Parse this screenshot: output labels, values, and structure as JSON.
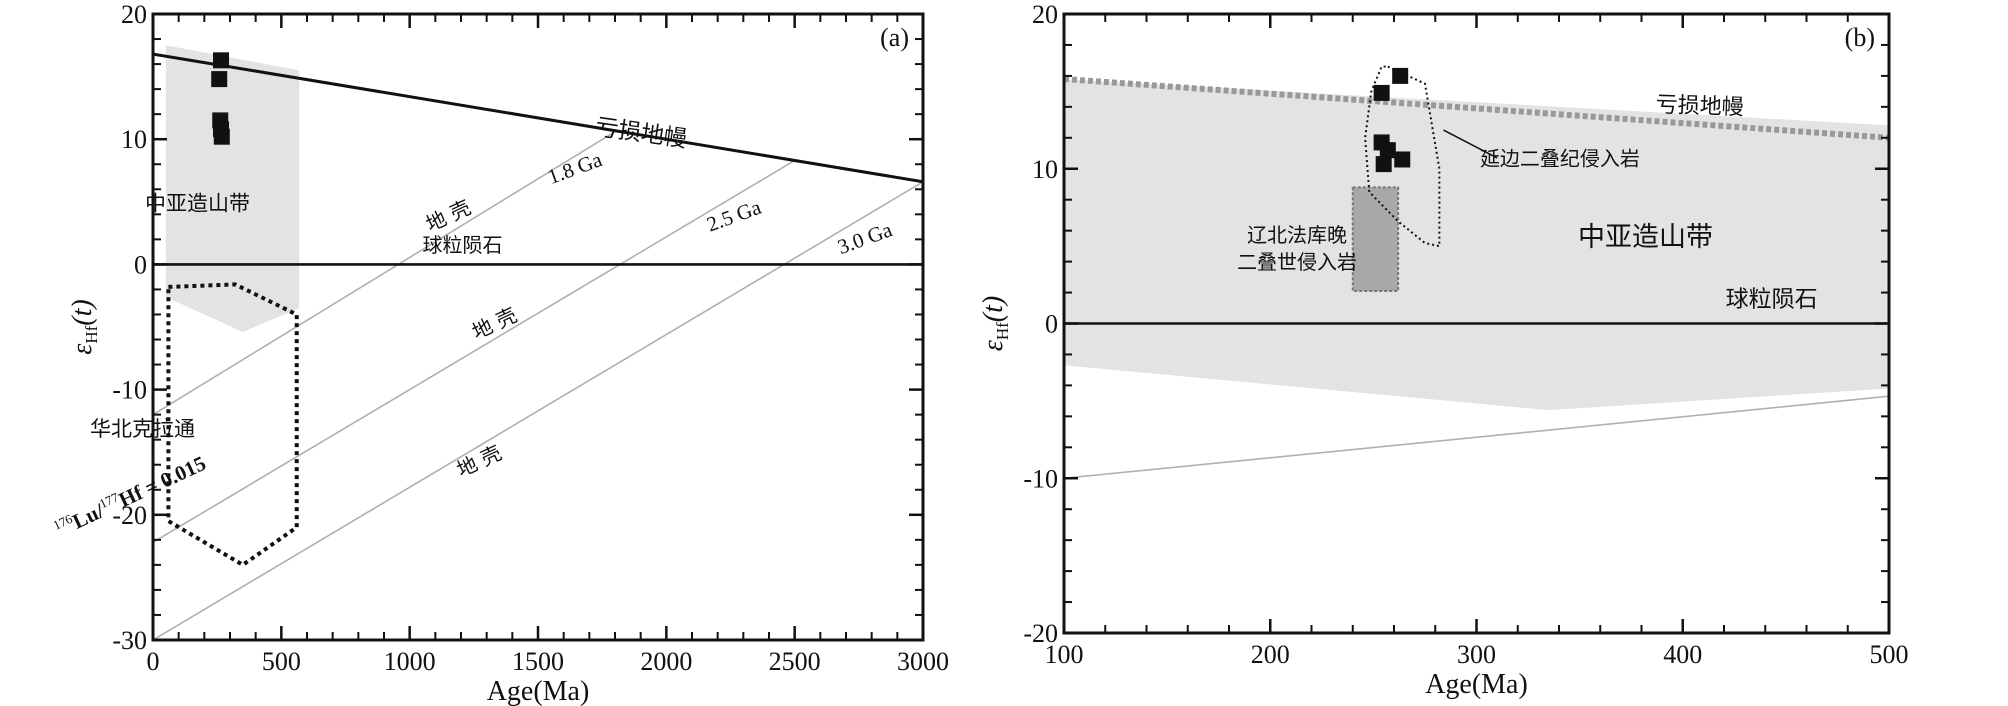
{
  "chart_data": [
    {
      "type": "scatter",
      "panel_label": "(a)",
      "xlabel": "Age(Ma)",
      "ylabel_main": "ε",
      "ylabel_sub": "Hf",
      "ylabel_tail": "(t)",
      "xlim": [
        0,
        3000
      ],
      "ylim": [
        -30,
        20
      ],
      "x_ticks": [
        0,
        500,
        1000,
        1500,
        2000,
        2500,
        3000
      ],
      "y_ticks": [
        -30,
        -20,
        -10,
        0,
        10,
        20
      ],
      "x_minor_step": 100,
      "y_minor_step": 2,
      "depleted_mantle": {
        "x": [
          0,
          3000
        ],
        "y": [
          16.8,
          6.6
        ],
        "label": "亏损地幔",
        "label_pos": [
          1720,
          10.4
        ]
      },
      "chondrite": {
        "y": 0,
        "label": "球粒陨石",
        "label_pos": [
          1050,
          1.0
        ]
      },
      "crust_lines": [
        {
          "label": "1.8 Ga",
          "x": [
            0,
            1800
          ],
          "y": [
            -12.0,
            10.6
          ],
          "label_pos": [
            1550,
            6.4
          ]
        },
        {
          "label": "2.5 Ga",
          "x": [
            0,
            2500
          ],
          "y": [
            -22.2,
            8.3
          ],
          "label_pos": [
            2170,
            2.6
          ]
        },
        {
          "label": "3.0 Ga",
          "x": [
            0,
            3000
          ],
          "y": [
            -30.0,
            6.6
          ],
          "label_pos": [
            2680,
            0.8
          ]
        }
      ],
      "crust_labels": [
        {
          "text": "地 壳",
          "pos": [
            1080,
            2.6
          ]
        },
        {
          "text": "地 壳",
          "pos": [
            1260,
            -6.0
          ]
        },
        {
          "text": "地 壳",
          "pos": [
            1200,
            -17.0
          ]
        }
      ],
      "lu_hf_label": {
        "prefix_sup": "176",
        "lu": "Lu/",
        "mid_sup": "177",
        "hf": "Hf = 0.015",
        "pos": [
          920,
          -21.8
        ]
      },
      "caob_region": {
        "label": "中亚造山带",
        "label_pos": [
          300,
          4.3
        ],
        "polygon": [
          [
            50,
            17.5
          ],
          [
            570,
            15.5
          ],
          [
            570,
            -3.5
          ],
          [
            350,
            -5.4
          ],
          [
            50,
            -2.6
          ]
        ]
      },
      "ncc_region": {
        "label": "华北克拉通",
        "label_pos": [
          300,
          -13.7
        ],
        "polygon": [
          [
            60,
            -1.8
          ],
          [
            320,
            -1.6
          ],
          [
            560,
            -4.0
          ],
          [
            560,
            -21.0
          ],
          [
            350,
            -24.0
          ],
          [
            60,
            -20.5
          ]
        ]
      },
      "points": [
        {
          "x": 265,
          "y": 16.3
        },
        {
          "x": 258,
          "y": 14.8
        },
        {
          "x": 262,
          "y": 11.5
        },
        {
          "x": 265,
          "y": 10.8
        },
        {
          "x": 268,
          "y": 10.2
        }
      ]
    },
    {
      "type": "scatter",
      "panel_label": "(b)",
      "xlabel": "Age(Ma)",
      "ylabel_main": "ε",
      "ylabel_sub": "Hf",
      "ylabel_tail": "(t)",
      "xlim": [
        100,
        500
      ],
      "ylim": [
        -20,
        20
      ],
      "x_ticks": [
        100,
        200,
        300,
        400,
        500
      ],
      "y_ticks": [
        -20,
        -10,
        0,
        10,
        20
      ],
      "x_minor_step": 20,
      "y_minor_step": 2,
      "depleted_mantle": {
        "x": [
          100,
          500
        ],
        "y": [
          15.8,
          12.0
        ],
        "label": "亏损地幔",
        "label_pos": [
          428,
          13.5
        ]
      },
      "chondrite": {
        "y": 0,
        "label": "球粒陨石",
        "label_pos": [
          462,
          1.1
        ]
      },
      "crust_line": {
        "x": [
          100,
          500
        ],
        "y": [
          -10.0,
          -4.7
        ]
      },
      "caob_region": {
        "label": "中亚造山带",
        "label_pos": [
          388,
          5.0
        ],
        "polygon": [
          [
            100,
            15.8
          ],
          [
            500,
            12.8
          ],
          [
            500,
            -4.2
          ],
          [
            335,
            -5.6
          ],
          [
            100,
            -2.7
          ]
        ]
      },
      "liaobei_box": {
        "x0": 240,
        "x1": 262,
        "y0": 2.1,
        "y1": 8.8,
        "label_lines": [
          "辽北法库晚",
          "二叠世侵入岩"
        ],
        "label_pos": [
          213,
          3.6
        ]
      },
      "yanbian_region": {
        "label": "延边二叠纪侵入岩",
        "label_pos": [
          355,
          10.2
        ],
        "leader": [
          [
            284,
            12.5
          ],
          [
            310,
            10.7
          ]
        ]
      },
      "points": [
        {
          "x": 263,
          "y": 16.0
        },
        {
          "x": 254,
          "y": 14.9
        },
        {
          "x": 254,
          "y": 11.7
        },
        {
          "x": 257,
          "y": 11.2
        },
        {
          "x": 255,
          "y": 10.3
        },
        {
          "x": 264,
          "y": 10.6
        }
      ]
    }
  ]
}
